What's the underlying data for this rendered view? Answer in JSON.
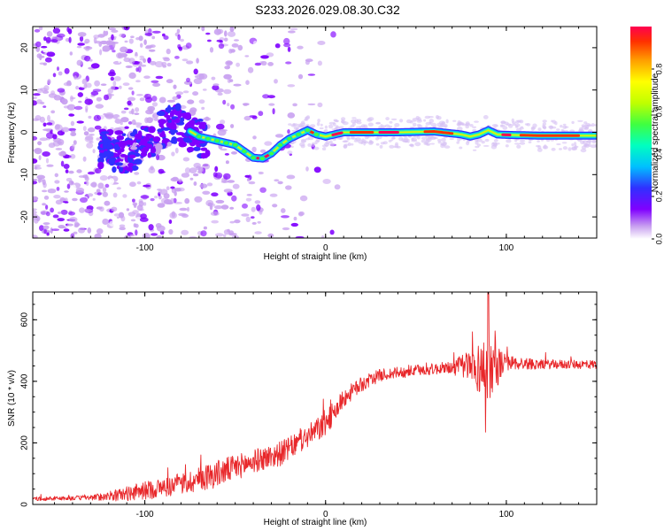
{
  "title": "S233.2026.029.08.30.C32",
  "chart_data": [
    {
      "type": "heatmap",
      "subtype": "spectrogram",
      "xlabel": "Height of straight line (km)",
      "ylabel": "Frequency (Hz)",
      "xlim": [
        -162,
        150
      ],
      "ylim": [
        -25,
        25
      ],
      "xticks": [
        -100,
        0,
        100
      ],
      "yticks": [
        -20,
        -10,
        0,
        10,
        20
      ],
      "colorbar": {
        "label": "Normalized spectral amplitude",
        "range": [
          0,
          1
        ],
        "ticks": [
          0.0,
          0.2,
          0.4,
          0.6,
          0.8
        ],
        "colors": [
          "#ffffff",
          "#c8a0f0",
          "#8000ff",
          "#3030ff",
          "#00c0ff",
          "#00ffc0",
          "#40ff40",
          "#c0ff00",
          "#ffff00",
          "#ffa000",
          "#ff3000",
          "#ff0050"
        ]
      },
      "ridge_frequency_track": {
        "x": [
          -120,
          -110,
          -100,
          -92,
          -85,
          -78,
          -70,
          -60,
          -50,
          -45,
          -40,
          -35,
          -30,
          -25,
          -20,
          -15,
          -10,
          -5,
          0,
          5,
          10,
          20,
          40,
          60,
          75,
          80,
          85,
          90,
          95,
          100,
          120,
          150
        ],
        "y": [
          -4,
          -5,
          -3,
          0,
          2,
          1,
          -1,
          -2,
          -3,
          -4.5,
          -6,
          -6.2,
          -5,
          -3,
          -1.5,
          -0.5,
          0.5,
          -0.5,
          -1,
          -0.5,
          0,
          0,
          0,
          0.2,
          -0.5,
          -1,
          -0.5,
          0.5,
          -0.5,
          -0.6,
          -0.8,
          -0.8
        ]
      }
    },
    {
      "type": "line",
      "xlabel": "Height of straight line (km)",
      "ylabel": "SNR (10 * v/v)",
      "xlim": [
        -162,
        150
      ],
      "ylim": [
        0,
        690
      ],
      "xticks": [
        -100,
        0,
        100
      ],
      "yticks": [
        0,
        200,
        400,
        600
      ],
      "series": [
        {
          "name": "SNR",
          "color": "#e8272a",
          "trend_x": [
            -162,
            -130,
            -115,
            -100,
            -80,
            -60,
            -40,
            -25,
            -15,
            -5,
            0,
            5,
            10,
            20,
            30,
            50,
            70,
            80,
            90,
            100,
            120,
            150
          ],
          "trend_y": [
            18,
            22,
            30,
            45,
            65,
            100,
            140,
            165,
            200,
            240,
            265,
            300,
            345,
            390,
            420,
            435,
            445,
            445,
            440,
            460,
            455,
            455
          ],
          "noise_amplitude": [
            6,
            8,
            20,
            30,
            35,
            45,
            38,
            40,
            35,
            40,
            45,
            35,
            30,
            25,
            20,
            18,
            20,
            60,
            110,
            25,
            15,
            15
          ],
          "extremes": {
            "max": 690,
            "min": 235,
            "at_x": 90
          }
        }
      ]
    }
  ]
}
